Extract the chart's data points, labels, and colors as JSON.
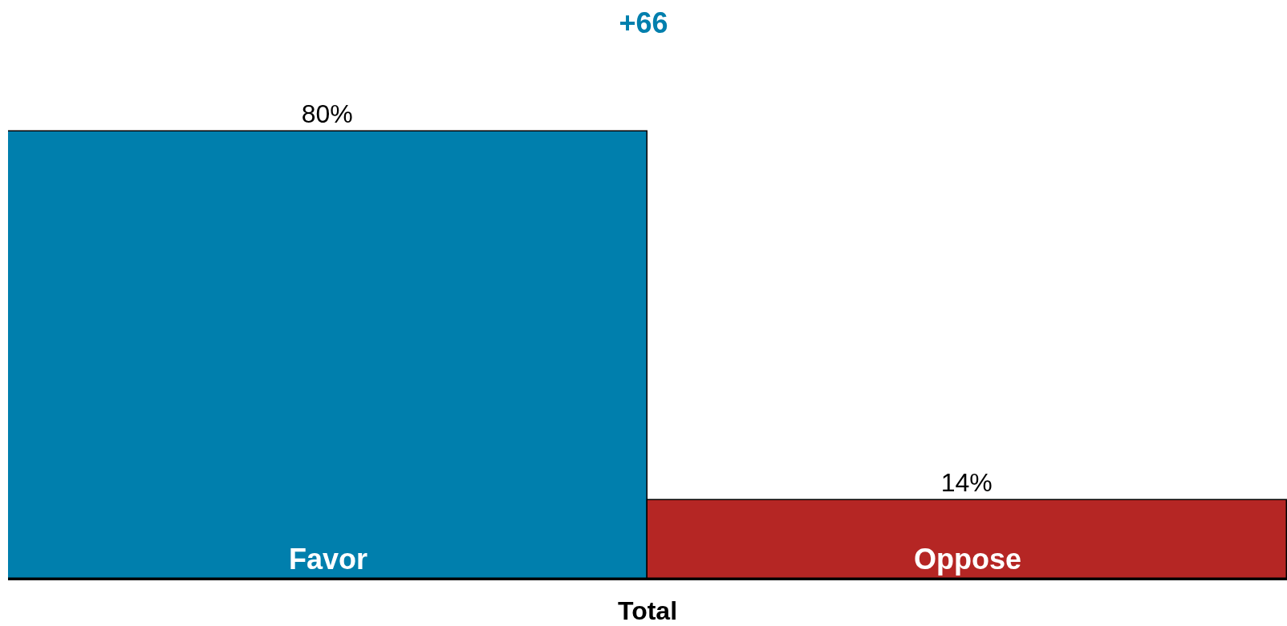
{
  "chart_data": {
    "type": "bar",
    "title": "+66",
    "xlabel": "Total",
    "categories": [
      "Favor",
      "Oppose"
    ],
    "values": [
      80,
      14
    ],
    "colors": [
      "#007fad",
      "#b52624"
    ],
    "value_labels": [
      "80%",
      "14%"
    ]
  }
}
